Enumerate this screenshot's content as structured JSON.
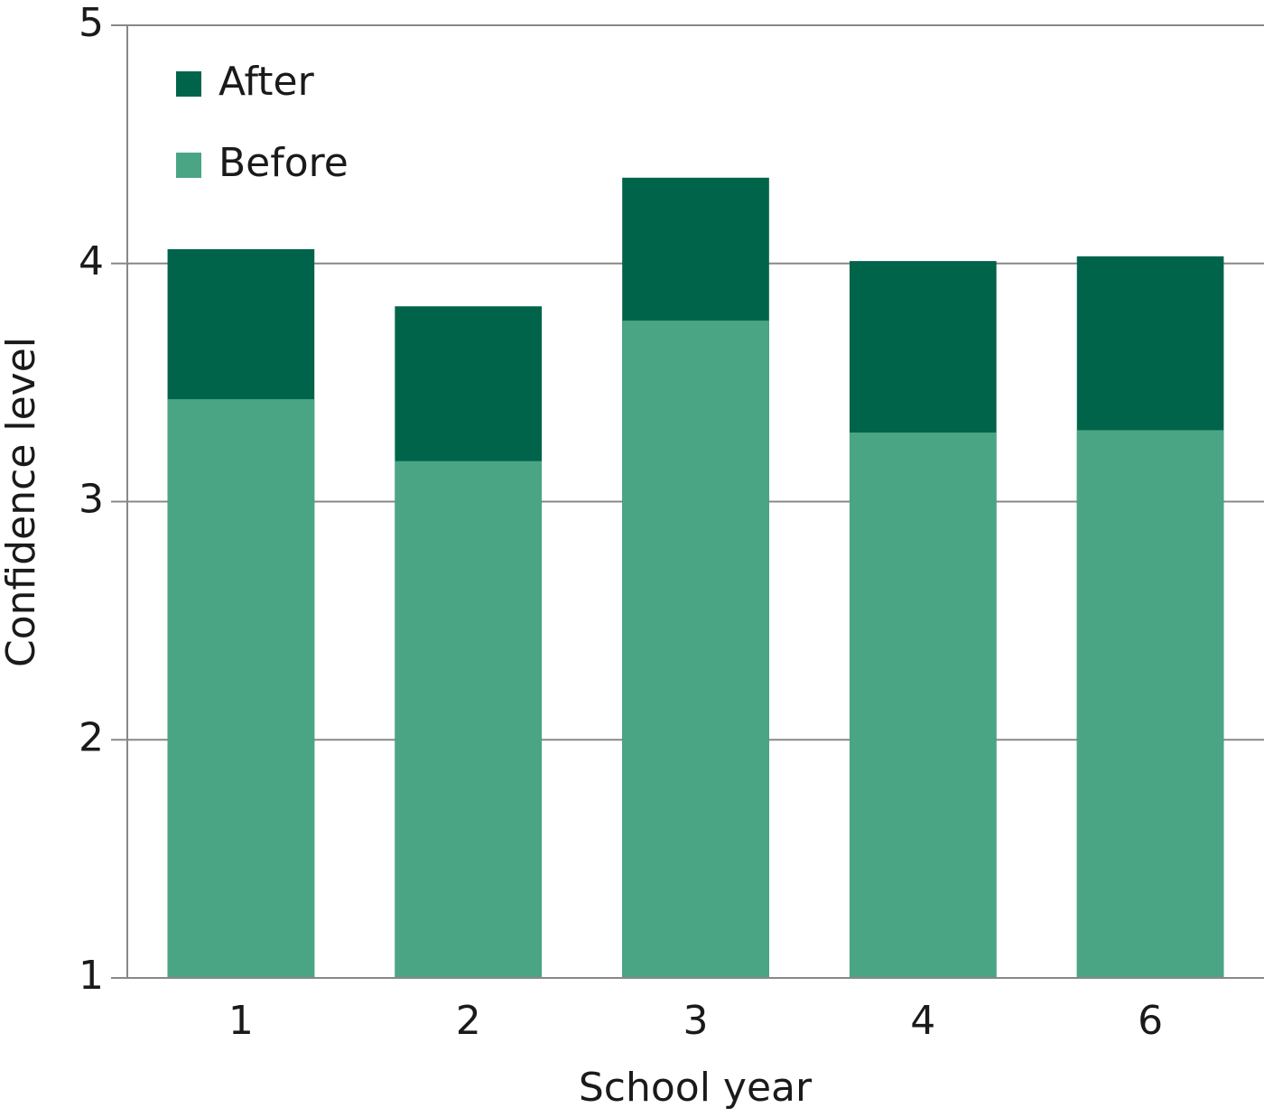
{
  "chart_data": {
    "type": "bar",
    "x_label": "School year",
    "y_label": "Confidence level",
    "categories": [
      "1",
      "2",
      "3",
      "4",
      "6"
    ],
    "series": [
      {
        "name": "After",
        "color": "#00644a",
        "values": [
          4.06,
          3.82,
          4.36,
          4.01,
          4.03
        ]
      },
      {
        "name": "Before",
        "color": "#4aa585",
        "values": [
          3.43,
          3.17,
          3.76,
          3.29,
          3.3
        ]
      }
    ],
    "ylim": [
      1,
      5
    ],
    "yticks": [
      1,
      2,
      3,
      4,
      5
    ],
    "grid": true,
    "legend": "upper left"
  }
}
